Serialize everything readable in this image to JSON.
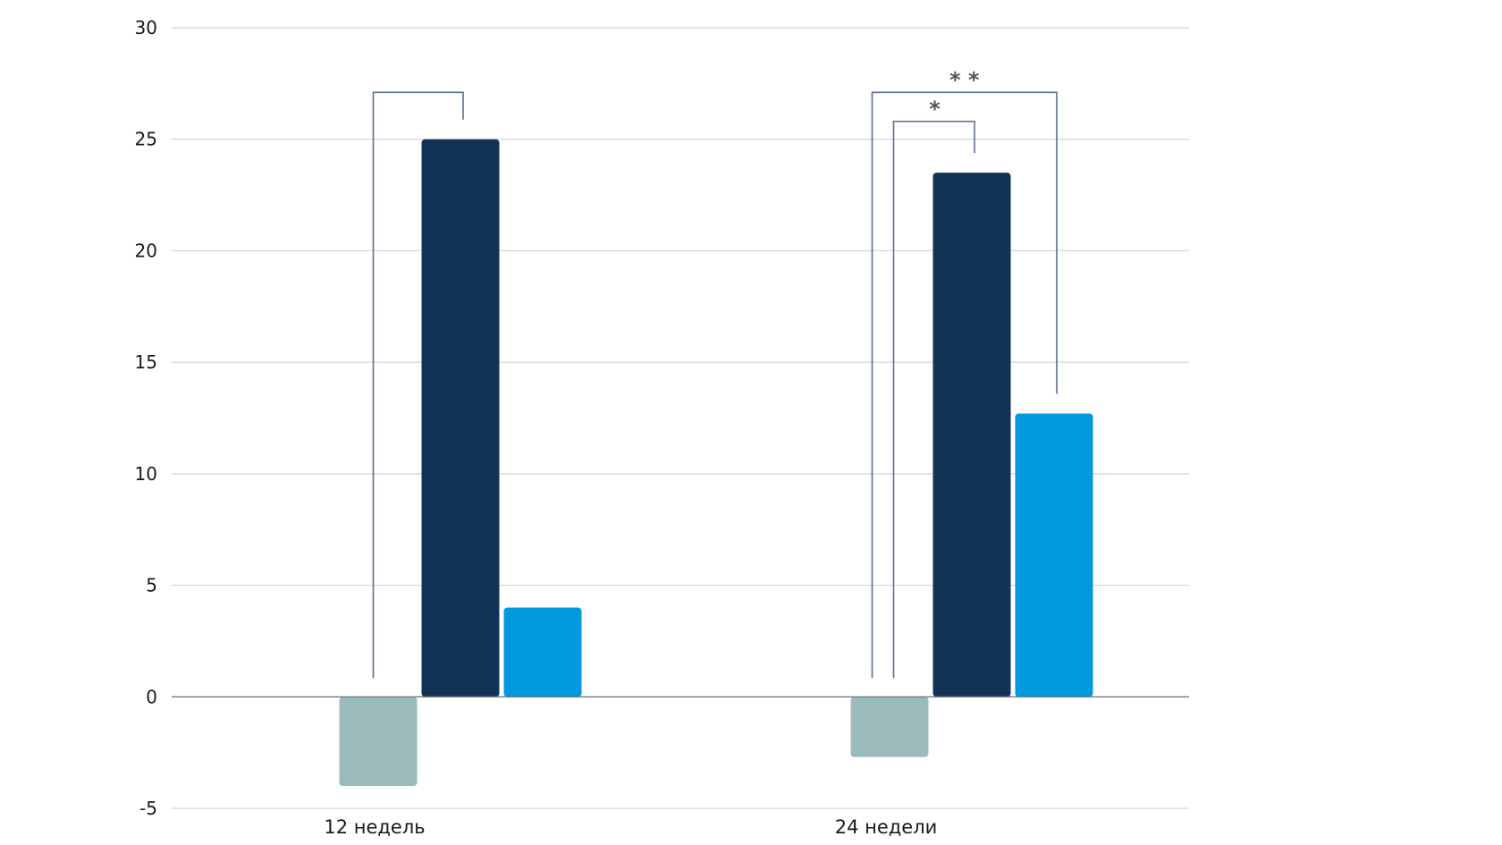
{
  "chart_data": {
    "type": "bar",
    "title": "",
    "xlabel": "",
    "ylabel": "",
    "ylim": [
      -5,
      30
    ],
    "y_ticks": [
      "30",
      "25",
      "20",
      "15",
      "10",
      "5",
      "0",
      "-5"
    ],
    "grid": true,
    "legend": "none",
    "categories": [
      "12 недель",
      "24 недели"
    ],
    "series": [
      {
        "color": "#9bbbbb",
        "values": [
          -4.0,
          -2.7
        ]
      },
      {
        "color": "#123356",
        "values": [
          25.0,
          23.5
        ]
      },
      {
        "color": "#0099dd",
        "values": [
          4.0,
          12.7
        ]
      }
    ],
    "annotations": [
      {
        "category": 0,
        "from_series": 0,
        "to_series": 1,
        "level": 27.1,
        "label": ""
      },
      {
        "category": 1,
        "from_series": 0,
        "to_series": 1,
        "level": 25.8,
        "label": "*"
      },
      {
        "category": 1,
        "from_series": 0,
        "to_series": 2,
        "level": 27.1,
        "label": "* *"
      }
    ]
  }
}
